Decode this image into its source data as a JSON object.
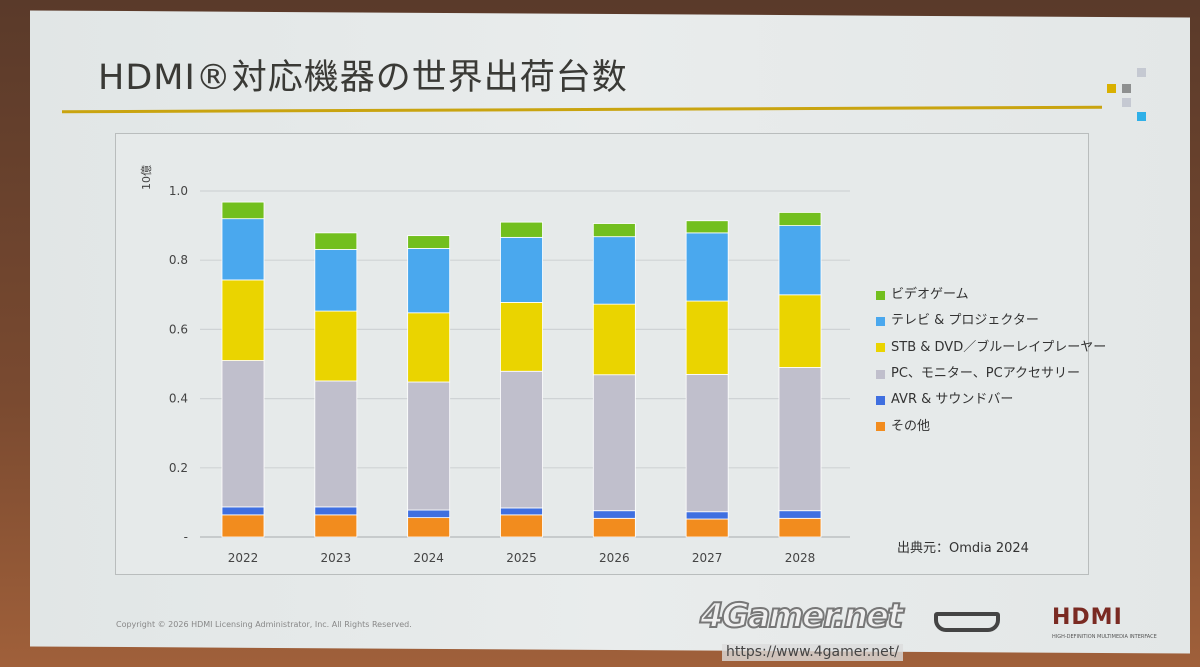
{
  "slide": {
    "title": "HDMI®対応機器の世界出荷台数",
    "source": "出典元：Omdia 2024",
    "copyright": "Copyright © 2026 HDMI Licensing Administrator, Inc.  All Rights Reserved.",
    "watermark": "4Gamer.net",
    "watermark_url": "https://www.4gamer.net/",
    "logo_text": "HDMI",
    "logo_subtext": "HIGH-DEFINITION MULTIMEDIA INTERFACE",
    "accent_color": "#c9a410"
  },
  "chart_data": {
    "type": "bar",
    "stacked": true,
    "title": "",
    "xlabel": "",
    "ylabel": "10億",
    "ylim": [
      0,
      1.0
    ],
    "yticks": [
      "-",
      "0.2",
      "0.4",
      "0.6",
      "0.8",
      "1.0"
    ],
    "grid": true,
    "legend_position": "right",
    "categories": [
      "2022",
      "2023",
      "2024",
      "2025",
      "2026",
      "2027",
      "2028"
    ],
    "series": [
      {
        "name": "その他",
        "color": "#f28c1e",
        "values": [
          0.064,
          0.064,
          0.056,
          0.064,
          0.054,
          0.052,
          0.054
        ]
      },
      {
        "name": "AVR & サウンドバー",
        "color": "#3f6fe0",
        "values": [
          0.023,
          0.023,
          0.022,
          0.02,
          0.022,
          0.021,
          0.022
        ]
      },
      {
        "name": "PC、モニター、PCアクセサリー",
        "color": "#c0bfcc",
        "values": [
          0.423,
          0.364,
          0.37,
          0.395,
          0.393,
          0.397,
          0.414
        ]
      },
      {
        "name": "STB & DVD／ブルーレイプレーヤー",
        "color": "#ead400",
        "values": [
          0.233,
          0.202,
          0.2,
          0.199,
          0.204,
          0.212,
          0.21
        ]
      },
      {
        "name": "テレビ & プロジェクター",
        "color": "#4aa8ee",
        "values": [
          0.177,
          0.178,
          0.186,
          0.188,
          0.195,
          0.197,
          0.2
        ]
      },
      {
        "name": "ビデオゲーム",
        "color": "#72bf1e",
        "values": [
          0.048,
          0.048,
          0.037,
          0.044,
          0.038,
          0.035,
          0.038
        ]
      }
    ]
  }
}
